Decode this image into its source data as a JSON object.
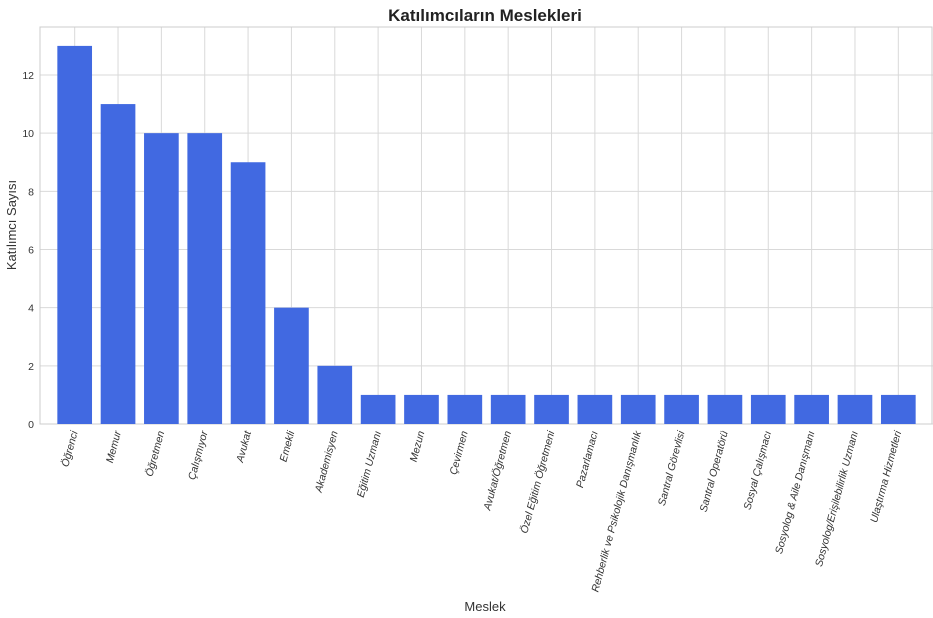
{
  "chart_data": {
    "type": "bar",
    "title": "Katılımcıların Meslekleri",
    "xlabel": "Meslek",
    "ylabel": "Katılımcı Sayısı",
    "categories": [
      "Öğrenci",
      "Memur",
      "Öğretmen",
      "Çalışmıyor",
      "Avukat",
      "Emekli",
      "Akademisyen",
      "Eğitim Uzmanı",
      "Mezun",
      "Çevirmen",
      "Avukat/Öğretmen",
      "Özel Eğitim Öğretmeni",
      "Pazarlamacı",
      "Rehberlik ve Psikolojik Danışmanlık",
      "Santral Görevlisi",
      "Santral Operatörü",
      "Sosyal Çalışmacı",
      "Sosyolog & Aile Danışmanı",
      "Sosyolog/Erişilebilirlik Uzmanı",
      "Ulaştırma Hizmetleri"
    ],
    "values": [
      13,
      11,
      10,
      10,
      9,
      4,
      2,
      1,
      1,
      1,
      1,
      1,
      1,
      1,
      1,
      1,
      1,
      1,
      1,
      1
    ],
    "yticks": [
      0,
      2,
      4,
      6,
      8,
      10,
      12
    ],
    "ylim": [
      0,
      13.65
    ],
    "grid": true,
    "bar_color": "#4169e1"
  }
}
